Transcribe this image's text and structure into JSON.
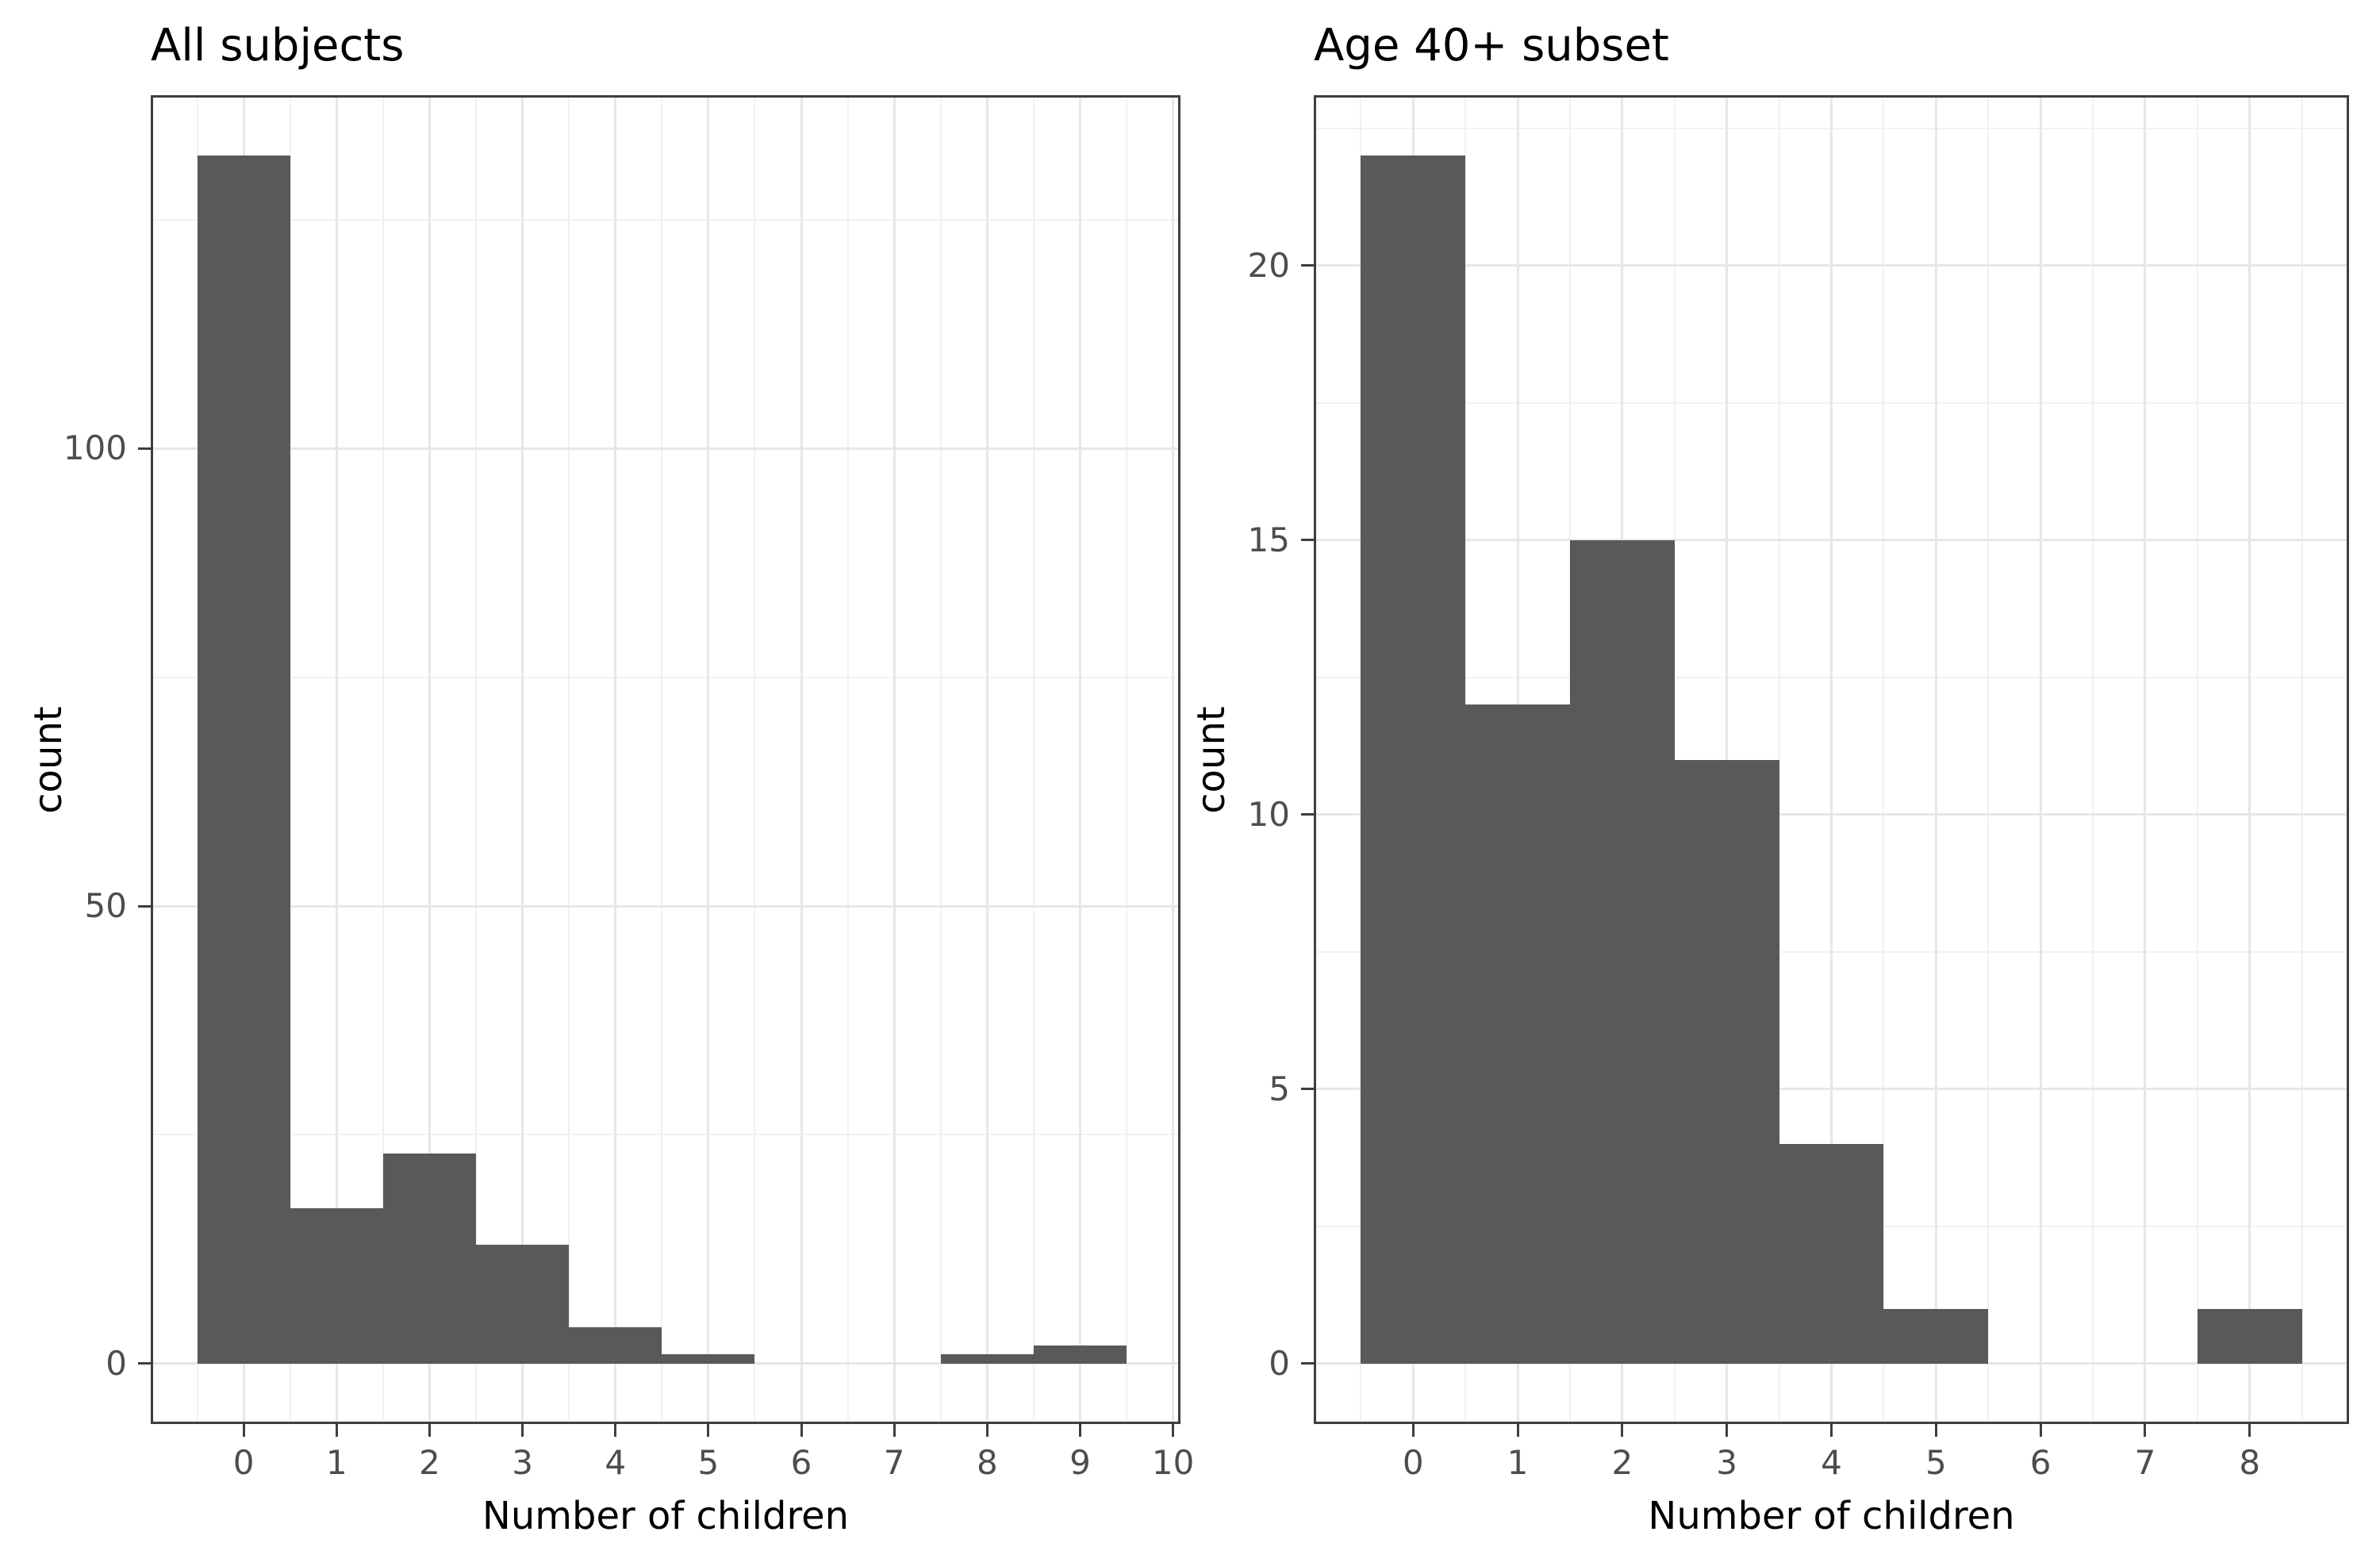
{
  "page": {
    "background": "#ffffff"
  },
  "style": {
    "bar_color": "#595959",
    "grid_major_color": "#e7e7e7",
    "grid_minor_color": "#f1f1f1",
    "panel_border_color": "#3e3e3e",
    "tick_color": "#3e3e3e",
    "tick_label_color": "#4d4d4d",
    "title_color": "#000000"
  },
  "chart_data": [
    {
      "type": "bar",
      "subtype": "histogram",
      "title": "All subjects",
      "xlabel": "Number of children",
      "ylabel": "count",
      "x": [
        0,
        1,
        2,
        3,
        4,
        5,
        6,
        7,
        8,
        9
      ],
      "values": [
        132,
        17,
        23,
        13,
        4,
        1,
        0,
        0,
        1,
        2
      ],
      "bar_width": 1,
      "x_ticks": [
        0,
        1,
        2,
        3,
        4,
        5,
        6,
        7,
        8,
        9,
        10
      ],
      "y_ticks": [
        0,
        50,
        100
      ],
      "y_minor": [
        25,
        75,
        125
      ],
      "xlim": [
        -1.0,
        10.08
      ],
      "ylim": [
        -6.6,
        138.6
      ],
      "grid": true,
      "legend": "none",
      "bar_color": "#595959"
    },
    {
      "type": "bar",
      "subtype": "histogram",
      "title": "Age 40+ subset",
      "xlabel": "Number of children",
      "ylabel": "count",
      "x": [
        0,
        1,
        2,
        3,
        4,
        5,
        6,
        7,
        8
      ],
      "values": [
        22,
        12,
        15,
        11,
        4,
        1,
        0,
        0,
        1
      ],
      "bar_width": 1,
      "x_ticks": [
        0,
        1,
        2,
        3,
        4,
        5,
        6,
        7,
        8
      ],
      "y_ticks": [
        0,
        5,
        10,
        15,
        20
      ],
      "y_minor": [
        2.5,
        7.5,
        12.5,
        17.5,
        22.5
      ],
      "xlim": [
        -0.95,
        8.95
      ],
      "ylim": [
        -1.1,
        23.1
      ],
      "grid": true,
      "legend": "none",
      "bar_color": "#595959"
    }
  ]
}
